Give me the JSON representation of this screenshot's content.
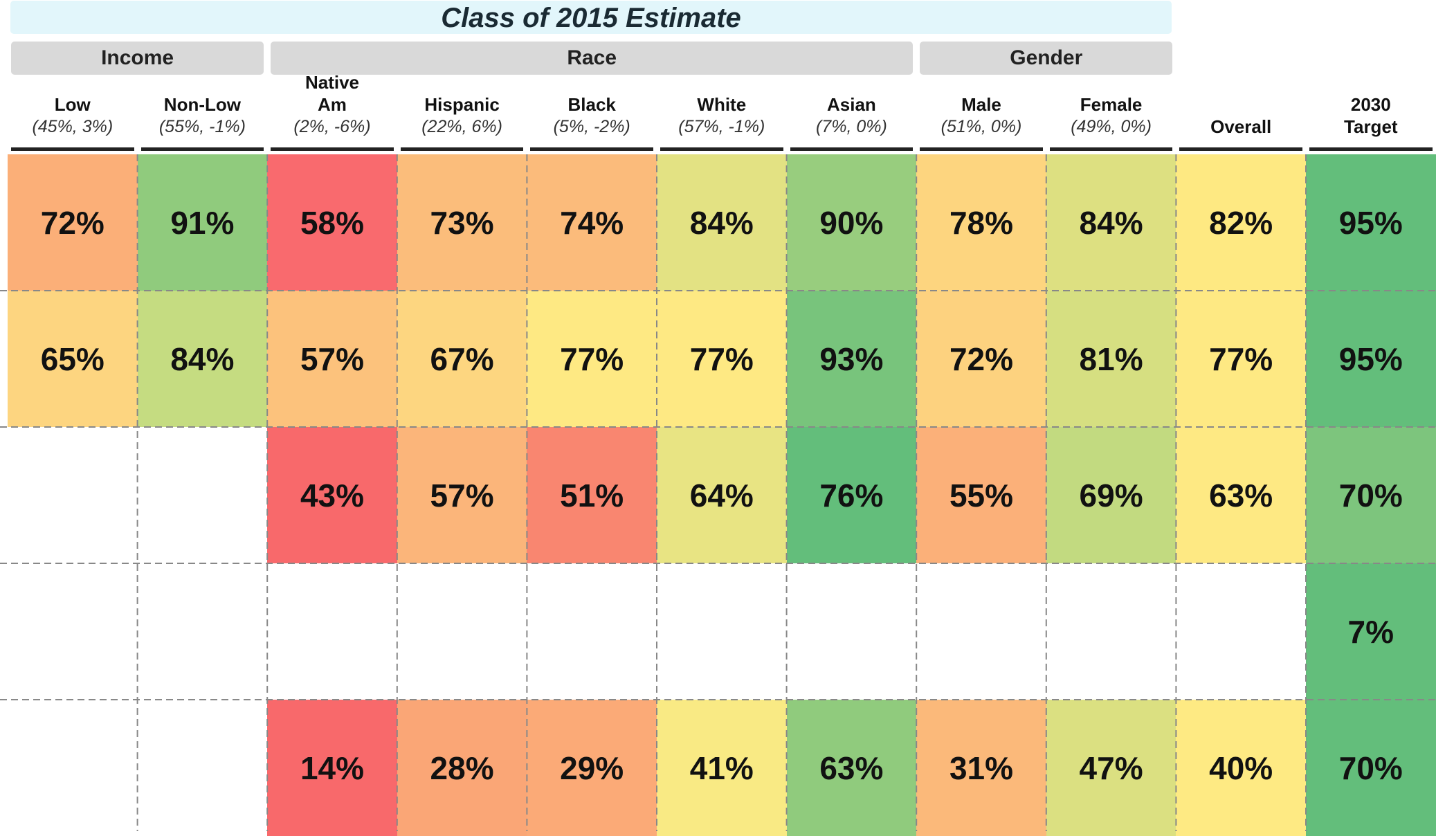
{
  "title": "Class of 2015 Estimate",
  "groups": [
    {
      "label": "Income",
      "columns": [
        {
          "name": "Low",
          "note": "(45%, 3%)"
        },
        {
          "name": "Non-Low",
          "note": "(55%, -1%)"
        }
      ]
    },
    {
      "label": "Race",
      "columns": [
        {
          "name": "Native Am",
          "note": "(2%, -6%)"
        },
        {
          "name": "Hispanic",
          "note": "(22%, 6%)"
        },
        {
          "name": "Black",
          "note": "(5%, -2%)"
        },
        {
          "name": "White",
          "note": "(57%, -1%)"
        },
        {
          "name": "Asian",
          "note": "(7%, 0%)"
        }
      ]
    },
    {
      "label": "Gender",
      "columns": [
        {
          "name": "Male",
          "note": "(51%, 0%)"
        },
        {
          "name": "Female",
          "note": "(49%, 0%)"
        }
      ]
    }
  ],
  "ungrouped_columns": [
    {
      "name": "Overall"
    },
    {
      "name": "2030 Target"
    }
  ],
  "rows": [
    [
      {
        "text": "72%",
        "color": "#fbaf78"
      },
      {
        "text": "91%",
        "color": "#90cb7d"
      },
      {
        "text": "58%",
        "color": "#f96a6e"
      },
      {
        "text": "73%",
        "color": "#fbbd7b"
      },
      {
        "text": "74%",
        "color": "#fbbb7b"
      },
      {
        "text": "84%",
        "color": "#e3e283"
      },
      {
        "text": "90%",
        "color": "#98cd7e"
      },
      {
        "text": "78%",
        "color": "#fdd57f"
      },
      {
        "text": "84%",
        "color": "#dde081"
      },
      {
        "text": "82%",
        "color": "#fee982"
      },
      {
        "text": "95%",
        "color": "#63be7b"
      }
    ],
    [
      {
        "text": "65%",
        "color": "#fdd580"
      },
      {
        "text": "84%",
        "color": "#c5dc81"
      },
      {
        "text": "57%",
        "color": "#fcc27c"
      },
      {
        "text": "67%",
        "color": "#fdd680"
      },
      {
        "text": "77%",
        "color": "#fee983"
      },
      {
        "text": "77%",
        "color": "#fee983"
      },
      {
        "text": "93%",
        "color": "#78c47c"
      },
      {
        "text": "72%",
        "color": "#fdd27f"
      },
      {
        "text": "81%",
        "color": "#d6df81"
      },
      {
        "text": "77%",
        "color": "#fee983"
      },
      {
        "text": "95%",
        "color": "#63be7b"
      }
    ],
    [
      null,
      null,
      {
        "text": "43%",
        "color": "#f8696b"
      },
      {
        "text": "57%",
        "color": "#fbb57a"
      },
      {
        "text": "51%",
        "color": "#f98670"
      },
      {
        "text": "64%",
        "color": "#e8e483"
      },
      {
        "text": "76%",
        "color": "#63be7b"
      },
      {
        "text": "55%",
        "color": "#fbb079"
      },
      {
        "text": "69%",
        "color": "#c2da80"
      },
      {
        "text": "63%",
        "color": "#fee983"
      },
      {
        "text": "70%",
        "color": "#7dc57d"
      }
    ],
    [
      null,
      null,
      null,
      null,
      null,
      null,
      null,
      null,
      null,
      null,
      {
        "text": "7%",
        "color": "#63be7b"
      }
    ],
    [
      null,
      null,
      {
        "text": "14%",
        "color": "#f8696b"
      },
      {
        "text": "28%",
        "color": "#faa676"
      },
      {
        "text": "29%",
        "color": "#fbaa77"
      },
      {
        "text": "41%",
        "color": "#f9ea84"
      },
      {
        "text": "63%",
        "color": "#90cb7d"
      },
      {
        "text": "31%",
        "color": "#fbb97a"
      },
      {
        "text": "47%",
        "color": "#dbe081"
      },
      {
        "text": "40%",
        "color": "#feea83"
      },
      {
        "text": "70%",
        "color": "#63be7b"
      }
    ]
  ]
}
